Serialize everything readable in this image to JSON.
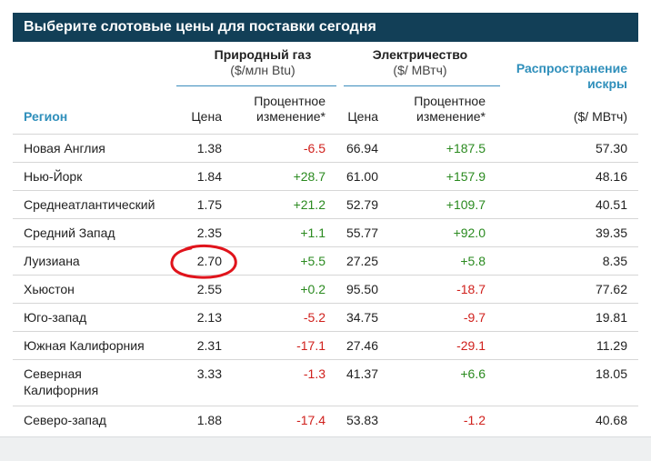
{
  "title": "Выберите слотовые цены для поставки сегодня",
  "headers": {
    "gas_group": "Природный газ",
    "gas_unit": "($/млн Btu)",
    "elec_group": "Электричество",
    "elec_unit": "($/ МВтч)",
    "spark_line1": "Распространение",
    "spark_line2": "искры",
    "spark_unit": "($/ МВтч)",
    "region": "Регион",
    "price": "Цена",
    "pct_line1": "Процентное",
    "pct_line2": "изменение*",
    "elec_price": "Цена",
    "elec_pct_line1": "Процентное",
    "elec_pct_line2": "изменение*"
  },
  "rows": [
    {
      "region": "Новая Англия",
      "gas_price": "1.38",
      "gas_change": "-6.5",
      "elec_price": "66.94",
      "elec_change": "+187.5",
      "spark": "57.30"
    },
    {
      "region": "Нью-Йорк",
      "gas_price": "1.84",
      "gas_change": "+28.7",
      "elec_price": "61.00",
      "elec_change": "+157.9",
      "spark": "48.16"
    },
    {
      "region": "Среднеатлантический",
      "gas_price": "1.75",
      "gas_change": "+21.2",
      "elec_price": "52.79",
      "elec_change": "+109.7",
      "spark": "40.51"
    },
    {
      "region": "Средний Запад",
      "gas_price": "2.35",
      "gas_change": "+1.1",
      "elec_price": "55.77",
      "elec_change": "+92.0",
      "spark": "39.35"
    },
    {
      "region": "Луизиана",
      "gas_price": "2.70",
      "gas_change": "+5.5",
      "elec_price": "27.25",
      "elec_change": "+5.8",
      "spark": "8.35"
    },
    {
      "region": "Хьюстон",
      "gas_price": "2.55",
      "gas_change": "+0.2",
      "elec_price": "95.50",
      "elec_change": "-18.7",
      "spark": "77.62"
    },
    {
      "region": "Юго-запад",
      "gas_price": "2.13",
      "gas_change": "-5.2",
      "elec_price": "34.75",
      "elec_change": "-9.7",
      "spark": "19.81"
    },
    {
      "region": "Южная Калифорния",
      "gas_price": "2.31",
      "gas_change": "-17.1",
      "elec_price": "27.46",
      "elec_change": "-29.1",
      "spark": "11.29"
    },
    {
      "region_line1": "Северная",
      "region_line2": "Калифорния",
      "gas_price": "3.33",
      "gas_change": "-1.3",
      "elec_price": "41.37",
      "elec_change": "+6.6",
      "spark": "18.05"
    },
    {
      "region": "Северо-запад",
      "gas_price": "1.88",
      "gas_change": "-17.4",
      "elec_price": "53.83",
      "elec_change": "-1.2",
      "spark": "40.68"
    }
  ],
  "colors": {
    "title_bg": "#123f57",
    "header_accent": "#2f8fbb",
    "negative": "#d0201c",
    "positive": "#2a8a1f",
    "annotation": "#e0141c"
  }
}
